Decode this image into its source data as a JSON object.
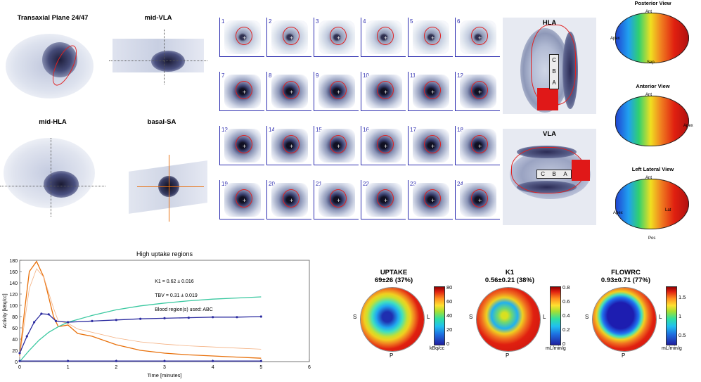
{
  "views": {
    "transaxial": "Transaxial Plane 24/47",
    "mid_vla": "mid-VLA",
    "mid_hla": "mid-HLA",
    "basal_sa": "basal-SA",
    "hla": "HLA",
    "vla": "VLA"
  },
  "segment_labels": [
    "C",
    "B",
    "A"
  ],
  "slices": [
    "1",
    "2",
    "3",
    "4",
    "5",
    "6",
    "7",
    "8",
    "9",
    "10",
    "11",
    "12",
    "13",
    "14",
    "15",
    "16",
    "17",
    "18",
    "19",
    "20",
    "21",
    "22",
    "23",
    "24"
  ],
  "render_views": [
    {
      "title": "Posterior View",
      "labels": [
        "Ant",
        "Apex",
        "Sep"
      ]
    },
    {
      "title": "Anterior View",
      "labels": [
        "Ant",
        "Apex"
      ]
    },
    {
      "title": "Left Lateral View",
      "labels": [
        "Ant",
        "Apex",
        "Lat",
        "Pos"
      ]
    }
  ],
  "polar_maps": [
    {
      "title": "UPTAKE",
      "stat": "69±26 (37%)",
      "unit": "kBq/cc",
      "ticks": [
        "80",
        "60",
        "40",
        "20",
        "0"
      ],
      "s": "S",
      "l": "L",
      "p": "P"
    },
    {
      "title": "K1",
      "stat": "0.56±0.21 (38%)",
      "unit": "mL/min/g",
      "ticks": [
        "0.8",
        "0.6",
        "0.4",
        "0.2",
        "0"
      ],
      "s": "S",
      "l": "L",
      "p": "P"
    },
    {
      "title": "FLOWRC",
      "stat": "0.93±0.71 (77%)",
      "unit": "mL/min/g",
      "ticks": [
        "1.5",
        "1",
        "0.5"
      ],
      "s": "S",
      "l": "L",
      "p": "P"
    }
  ],
  "chart_data": {
    "type": "line",
    "title": "High uptake regions",
    "xlabel": "Time [minutes]",
    "ylabel": "Activity [kBq/cc]",
    "xlim": [
      0,
      6
    ],
    "ylim": [
      0,
      180
    ],
    "xticks": [
      "0",
      "1",
      "2",
      "3",
      "4",
      "5",
      "6"
    ],
    "yticks": [
      "0",
      "20",
      "40",
      "60",
      "80",
      "100",
      "120",
      "140",
      "160",
      "180"
    ],
    "annotations": [
      "K1 = 0.62 ± 0.016",
      "TBV = 0.31 ± 0.019",
      "Blood region(s) used: ABC"
    ],
    "series": [
      {
        "color": "#e8700a",
        "x": [
          0,
          0.1,
          0.2,
          0.35,
          0.5,
          0.7,
          0.8,
          1.0,
          1.2,
          1.5,
          2.0,
          2.5,
          3.0,
          3.5,
          4.0,
          4.5,
          5.0
        ],
        "values": [
          10,
          90,
          160,
          178,
          150,
          80,
          62,
          65,
          50,
          45,
          30,
          20,
          15,
          12,
          10,
          8,
          6
        ]
      },
      {
        "color": "#f4b080",
        "x": [
          0,
          0.1,
          0.2,
          0.35,
          0.5,
          0.7,
          0.8,
          1.0,
          1.2,
          1.5,
          2.0,
          2.5,
          3.0,
          3.5,
          4.0,
          4.5,
          5.0
        ],
        "values": [
          8,
          70,
          130,
          165,
          150,
          95,
          72,
          68,
          58,
          52,
          42,
          35,
          31,
          28,
          26,
          24,
          22
        ]
      },
      {
        "color": "#3ac8a0",
        "x": [
          0,
          0.2,
          0.4,
          0.6,
          0.8,
          1.0,
          1.5,
          2.0,
          2.5,
          3.0,
          3.5,
          4.0,
          4.5,
          5.0
        ],
        "values": [
          0,
          20,
          38,
          52,
          62,
          70,
          82,
          92,
          99,
          104,
          108,
          111,
          113,
          115
        ]
      },
      {
        "color": "#2c2ca0",
        "x": [
          0,
          0.15,
          0.3,
          0.45,
          0.6,
          0.75,
          1.0,
          1.5,
          2.0,
          2.5,
          3.0,
          3.5,
          4.0,
          4.5,
          5.0
        ],
        "values": [
          15,
          45,
          70,
          85,
          84,
          72,
          70,
          72,
          74,
          76,
          77,
          78,
          79,
          79,
          80
        ]
      },
      {
        "color": "#2c2ca0",
        "x": [
          0,
          1,
          2,
          3,
          4,
          5
        ],
        "values": [
          1,
          1,
          1,
          1,
          1,
          1
        ]
      }
    ]
  }
}
